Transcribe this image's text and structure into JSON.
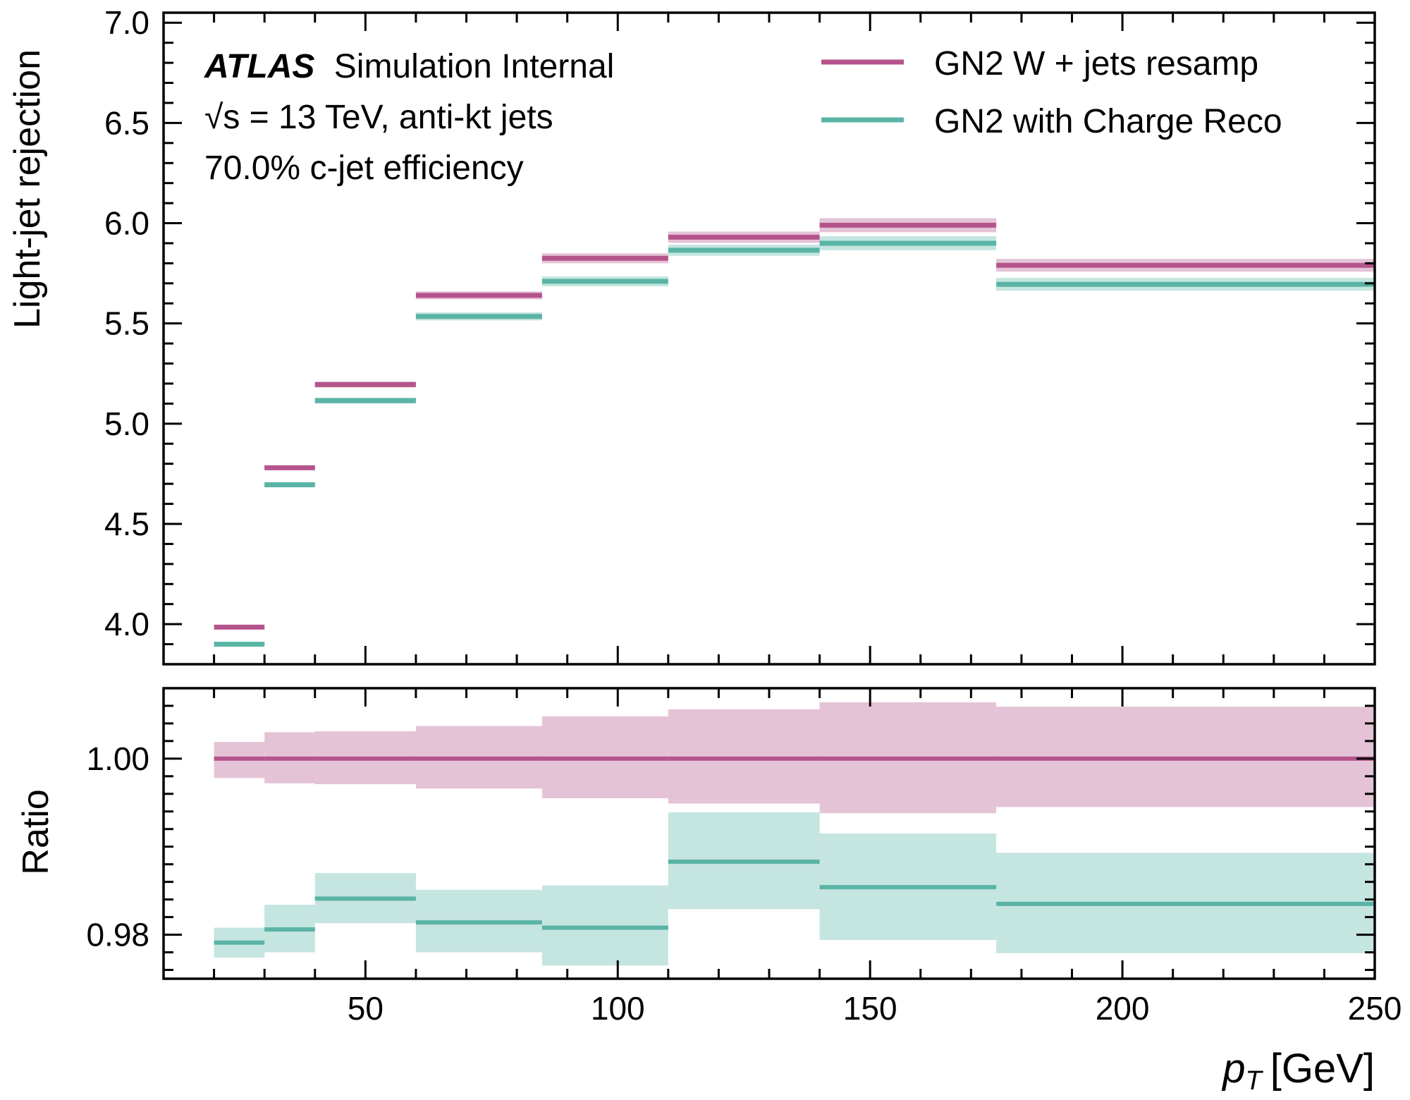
{
  "chart_data": [
    {
      "type": "line",
      "role": "main",
      "ylabel": "Light-jet rejection",
      "xlabel": "",
      "xlim": [
        10,
        250
      ],
      "ylim": [
        3.8,
        7.05
      ],
      "yticks": [
        "4.0",
        "4.5",
        "5.0",
        "5.5",
        "6.0",
        "6.5",
        "7.0"
      ],
      "grid": false,
      "legend": "top-right",
      "annotations": {
        "experiment": "ATLAS",
        "status": "Simulation Internal",
        "energy": "√s = 13 TeV, anti-kt jets",
        "working_point": "70.0% c-jet efficiency"
      },
      "bins": [
        [
          20,
          30
        ],
        [
          30,
          40
        ],
        [
          40,
          60
        ],
        [
          60,
          85
        ],
        [
          85,
          110
        ],
        [
          110,
          140
        ],
        [
          140,
          175
        ],
        [
          175,
          250
        ]
      ],
      "series": [
        {
          "name": "GN2 W + jets resamp",
          "color": "#b5548c",
          "values": [
            3.985,
            4.78,
            5.195,
            5.64,
            5.825,
            5.93,
            5.99,
            5.79
          ],
          "errors": [
            0.008,
            0.012,
            0.015,
            0.02,
            0.025,
            0.028,
            0.035,
            0.032
          ]
        },
        {
          "name": "GN2 with Charge Reco",
          "color": "#5ab4a5",
          "values": [
            3.9,
            4.695,
            5.115,
            5.535,
            5.71,
            5.865,
            5.9,
            5.695
          ],
          "errors": [
            0.008,
            0.012,
            0.015,
            0.02,
            0.025,
            0.028,
            0.035,
            0.032
          ]
        }
      ]
    },
    {
      "type": "line",
      "role": "ratio",
      "ylabel": "Ratio",
      "xlabel": "p_T [GeV]",
      "xlim": [
        10,
        250
      ],
      "ylim": [
        0.975,
        1.008
      ],
      "yticks": [
        "0.98",
        "1.00"
      ],
      "xticks": [
        "50",
        "100",
        "150",
        "200",
        "250"
      ],
      "grid": false,
      "bins": [
        [
          20,
          30
        ],
        [
          30,
          40
        ],
        [
          40,
          60
        ],
        [
          60,
          85
        ],
        [
          85,
          110
        ],
        [
          110,
          140
        ],
        [
          140,
          175
        ],
        [
          175,
          250
        ]
      ],
      "series": [
        {
          "name": "GN2 W + jets resamp",
          "color": "#b5548c",
          "values": [
            1.0,
            1.0,
            1.0,
            1.0,
            1.0,
            1.0,
            1.0,
            1.0
          ],
          "band_low": [
            0.9978,
            0.9972,
            0.9971,
            0.9966,
            0.9955,
            0.9949,
            0.9938,
            0.9945
          ],
          "band_high": [
            1.0019,
            1.003,
            1.0031,
            1.0037,
            1.0048,
            1.0056,
            1.0064,
            1.0059
          ]
        },
        {
          "name": "GN2 with Charge Reco",
          "color": "#5ab4a5",
          "values": [
            0.9791,
            0.9806,
            0.9841,
            0.9814,
            0.9808,
            0.9883,
            0.9854,
            0.9835
          ],
          "band_low": [
            0.9774,
            0.978,
            0.9813,
            0.978,
            0.9765,
            0.9829,
            0.9794,
            0.9779
          ],
          "band_high": [
            0.9808,
            0.9834,
            0.987,
            0.9851,
            0.9856,
            0.9939,
            0.9915,
            0.9893
          ]
        }
      ]
    }
  ]
}
